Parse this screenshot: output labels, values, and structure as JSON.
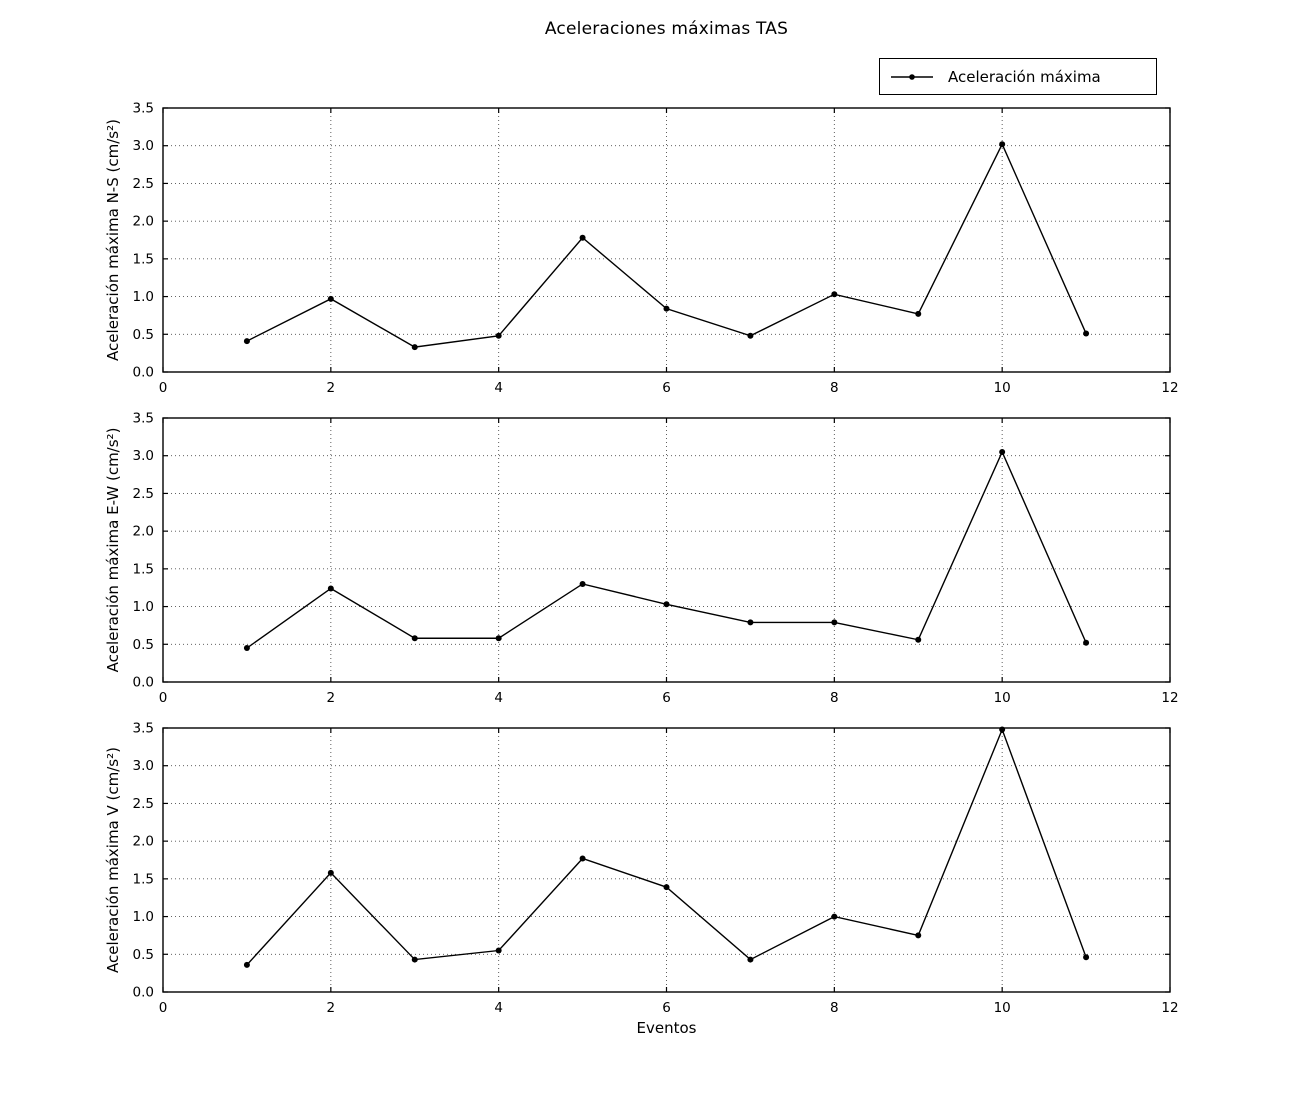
{
  "chart_data": [
    {
      "type": "line",
      "panel": "N-S",
      "title": "Aceleraciones máximas TAS",
      "ylabel": "Aceleración máxima N-S (cm/s²)",
      "xlabel": "",
      "legend": [
        "Aceleración máxima"
      ],
      "legend_loc": "upper right, above axes",
      "x": [
        1,
        2,
        3,
        4,
        5,
        6,
        7,
        8,
        9,
        10,
        11
      ],
      "y": [
        0.41,
        0.97,
        0.33,
        0.48,
        1.78,
        0.84,
        0.48,
        1.03,
        0.77,
        3.02,
        0.51
      ],
      "xlim": [
        0,
        12
      ],
      "ylim": [
        0,
        3.5
      ],
      "xticks": [
        0,
        2,
        4,
        6,
        8,
        10,
        12
      ],
      "xtick_labels": [
        "0",
        "2",
        "4",
        "6",
        "8",
        "10",
        "12"
      ],
      "yticks": [
        0,
        0.5,
        1,
        1.5,
        2,
        2.5,
        3,
        3.5
      ],
      "ytick_labels": [
        "0.0",
        "0.5",
        "1.0",
        "1.5",
        "2.0",
        "2.5",
        "3.0",
        "3.5"
      ],
      "grid": "dotted",
      "line_color": "#000000",
      "marker": "point"
    },
    {
      "type": "line",
      "panel": "E-W",
      "title": "",
      "ylabel": "Aceleración máxima E-W (cm/s²)",
      "xlabel": "",
      "legend": [],
      "x": [
        1,
        2,
        3,
        4,
        5,
        6,
        7,
        8,
        9,
        10,
        11
      ],
      "y": [
        0.45,
        1.24,
        0.58,
        0.58,
        1.3,
        1.03,
        0.79,
        0.79,
        0.56,
        3.05,
        0.52
      ],
      "xlim": [
        0,
        12
      ],
      "ylim": [
        0,
        3.5
      ],
      "xticks": [
        0,
        2,
        4,
        6,
        8,
        10,
        12
      ],
      "xtick_labels": [
        "0",
        "2",
        "4",
        "6",
        "8",
        "10",
        "12"
      ],
      "yticks": [
        0,
        0.5,
        1,
        1.5,
        2,
        2.5,
        3,
        3.5
      ],
      "ytick_labels": [
        "0.0",
        "0.5",
        "1.0",
        "1.5",
        "2.0",
        "2.5",
        "3.0",
        "3.5"
      ],
      "grid": "dotted",
      "line_color": "#000000",
      "marker": "point"
    },
    {
      "type": "line",
      "panel": "V",
      "title": "",
      "ylabel": "Aceleración máxima V (cm/s²)",
      "xlabel": "Eventos",
      "legend": [],
      "x": [
        1,
        2,
        3,
        4,
        5,
        6,
        7,
        8,
        9,
        10,
        11
      ],
      "y": [
        0.36,
        1.58,
        0.43,
        0.55,
        1.77,
        1.39,
        0.43,
        1.0,
        0.75,
        3.48,
        0.46
      ],
      "xlim": [
        0,
        12
      ],
      "ylim": [
        0,
        3.5
      ],
      "xticks": [
        0,
        2,
        4,
        6,
        8,
        10,
        12
      ],
      "xtick_labels": [
        "0",
        "2",
        "4",
        "6",
        "8",
        "10",
        "12"
      ],
      "yticks": [
        0,
        0.5,
        1,
        1.5,
        2,
        2.5,
        3,
        3.5
      ],
      "ytick_labels": [
        "0.0",
        "0.5",
        "1.0",
        "1.5",
        "2.0",
        "2.5",
        "3.0",
        "3.5"
      ],
      "grid": "dotted",
      "line_color": "#000000",
      "marker": "point"
    }
  ]
}
